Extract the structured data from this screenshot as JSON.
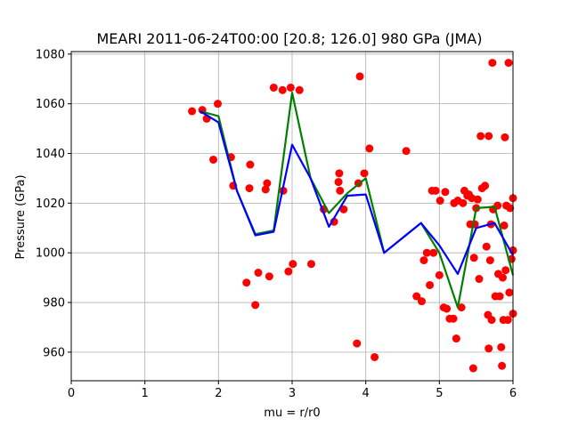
{
  "chart_data": {
    "type": "scatter",
    "title": "MEARI 2011-06-24T00:00 [20.8; 126.0] 980 GPa (JMA)",
    "xlabel": "mu = r/r0",
    "ylabel": "Pressure (GPa)",
    "xlim": [
      0,
      6
    ],
    "ylim": [
      948.5,
      1081
    ],
    "xticks": [
      0,
      1,
      2,
      3,
      4,
      5,
      6
    ],
    "yticks": [
      960,
      980,
      1000,
      1020,
      1040,
      1060,
      1080
    ],
    "grid": true,
    "series": [
      {
        "kind": "scatter",
        "color": "#ff0000",
        "points": [
          [
            1.64,
            1057
          ],
          [
            1.78,
            1057.5
          ],
          [
            1.84,
            1054
          ],
          [
            1.93,
            1037.5
          ],
          [
            1.99,
            1060
          ],
          [
            2.17,
            1038.5
          ],
          [
            2.2,
            1027
          ],
          [
            2.38,
            988
          ],
          [
            2.42,
            1026
          ],
          [
            2.43,
            1035.5
          ],
          [
            2.5,
            979
          ],
          [
            2.54,
            992
          ],
          [
            2.64,
            1025.5
          ],
          [
            2.66,
            1028
          ],
          [
            2.69,
            990.5
          ],
          [
            2.75,
            1066.5
          ],
          [
            2.87,
            1065.5
          ],
          [
            2.88,
            1025
          ],
          [
            2.95,
            992.5
          ],
          [
            2.98,
            1066.5
          ],
          [
            3.01,
            995.5
          ],
          [
            3.1,
            1065.5
          ],
          [
            3.26,
            995.5
          ],
          [
            3.43,
            1017.5
          ],
          [
            3.57,
            1012.5
          ],
          [
            3.63,
            1028.5
          ],
          [
            3.64,
            1032
          ],
          [
            3.65,
            1025
          ],
          [
            3.7,
            1017.5
          ],
          [
            3.88,
            963.5
          ],
          [
            3.9,
            1028
          ],
          [
            3.92,
            1071
          ],
          [
            3.98,
            1032
          ],
          [
            4.05,
            1042
          ],
          [
            4.12,
            958
          ],
          [
            4.55,
            1041
          ],
          [
            4.69,
            982.5
          ],
          [
            4.76,
            980.5
          ],
          [
            4.79,
            997
          ],
          [
            4.83,
            1000
          ],
          [
            4.87,
            987
          ],
          [
            4.9,
            1025
          ],
          [
            4.92,
            1000
          ],
          [
            4.95,
            1025
          ],
          [
            5.0,
            991
          ],
          [
            5.01,
            1021
          ],
          [
            5.06,
            978
          ],
          [
            5.08,
            1024.5
          ],
          [
            5.1,
            977.5
          ],
          [
            5.14,
            973.5
          ],
          [
            5.19,
            973.5
          ],
          [
            5.2,
            1020
          ],
          [
            5.23,
            965.5
          ],
          [
            5.25,
            1021
          ],
          [
            5.3,
            978
          ],
          [
            5.32,
            1020
          ],
          [
            5.34,
            1025
          ],
          [
            5.38,
            1023
          ],
          [
            5.4,
            1023.5
          ],
          [
            5.42,
            1011.5
          ],
          [
            5.44,
            1022
          ],
          [
            5.46,
            953.5
          ],
          [
            5.47,
            998
          ],
          [
            5.48,
            1011.5
          ],
          [
            5.5,
            1018
          ],
          [
            5.52,
            1021.5
          ],
          [
            5.54,
            989.5
          ],
          [
            5.56,
            1047
          ],
          [
            5.58,
            1026
          ],
          [
            5.62,
            1027
          ],
          [
            5.64,
            1002.5
          ],
          [
            5.66,
            975
          ],
          [
            5.67,
            961.5
          ],
          [
            5.67,
            1047
          ],
          [
            5.69,
            997
          ],
          [
            5.7,
            1011.5
          ],
          [
            5.71,
            973
          ],
          [
            5.72,
            1076.5
          ],
          [
            5.73,
            1017.5
          ],
          [
            5.76,
            982.5
          ],
          [
            5.79,
            1019
          ],
          [
            5.8,
            991.5
          ],
          [
            5.82,
            982.5
          ],
          [
            5.84,
            962
          ],
          [
            5.85,
            954.5
          ],
          [
            5.86,
            990
          ],
          [
            5.87,
            973
          ],
          [
            5.88,
            1011
          ],
          [
            5.89,
            1046.5
          ],
          [
            5.9,
            993
          ],
          [
            5.91,
            1019
          ],
          [
            5.93,
            973
          ],
          [
            5.94,
            1076.5
          ],
          [
            5.95,
            984
          ],
          [
            5.96,
            1018
          ],
          [
            5.98,
            997.5
          ],
          [
            6.0,
            1022
          ],
          [
            6.0,
            1001
          ],
          [
            6.0,
            975.5
          ]
        ]
      },
      {
        "kind": "line",
        "color": "#008000",
        "points": [
          [
            1.75,
            1057
          ],
          [
            2.0,
            1055
          ],
          [
            2.25,
            1025
          ],
          [
            2.5,
            1007.5
          ],
          [
            2.75,
            1009
          ],
          [
            3.0,
            1064.5
          ],
          [
            3.25,
            1030
          ],
          [
            3.5,
            1016
          ],
          [
            3.75,
            1024
          ],
          [
            4.0,
            1030
          ],
          [
            4.25,
            1000
          ],
          [
            4.75,
            1012
          ],
          [
            5.0,
            1000
          ],
          [
            5.25,
            978
          ],
          [
            5.5,
            1018
          ],
          [
            5.75,
            1018.5
          ],
          [
            6.0,
            991
          ]
        ]
      },
      {
        "kind": "line",
        "color": "#0000ff",
        "points": [
          [
            1.75,
            1057
          ],
          [
            2.0,
            1052.5
          ],
          [
            2.25,
            1025
          ],
          [
            2.5,
            1007
          ],
          [
            2.75,
            1008.5
          ],
          [
            3.0,
            1043.5
          ],
          [
            3.25,
            1030
          ],
          [
            3.5,
            1010.5
          ],
          [
            3.75,
            1023
          ],
          [
            4.0,
            1023.5
          ],
          [
            4.25,
            1000
          ],
          [
            4.75,
            1012
          ],
          [
            5.0,
            1003
          ],
          [
            5.25,
            991.5
          ],
          [
            5.5,
            1010
          ],
          [
            5.75,
            1012
          ],
          [
            6.0,
            999
          ]
        ]
      }
    ]
  }
}
